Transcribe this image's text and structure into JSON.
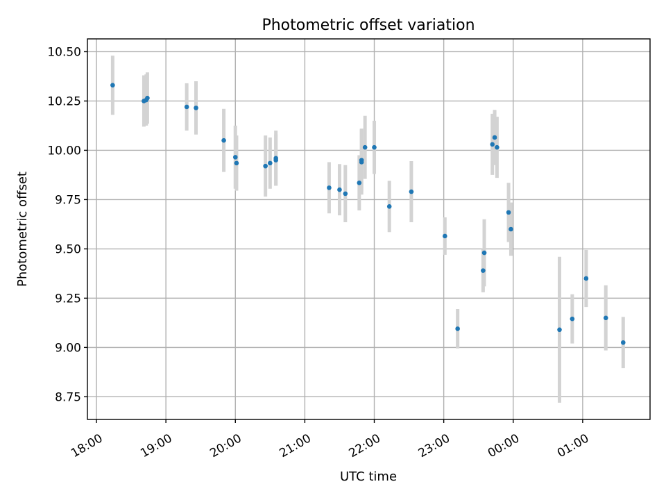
{
  "chart_data": {
    "type": "scatter",
    "title": "Photometric offset variation",
    "xlabel": "UTC time",
    "ylabel": "Photometric offset",
    "x_range_hours": [
      17.87,
      25.97
    ],
    "ylim": [
      8.635,
      10.565
    ],
    "grid": true,
    "x_ticks": [
      {
        "hour": 18,
        "label": "18:00"
      },
      {
        "hour": 19,
        "label": "19:00"
      },
      {
        "hour": 20,
        "label": "20:00"
      },
      {
        "hour": 21,
        "label": "21:00"
      },
      {
        "hour": 22,
        "label": "22:00"
      },
      {
        "hour": 23,
        "label": "23:00"
      },
      {
        "hour": 24,
        "label": "00:00"
      },
      {
        "hour": 25,
        "label": "01:00"
      }
    ],
    "y_ticks": [
      {
        "value": 8.75,
        "label": "8.75"
      },
      {
        "value": 9.0,
        "label": "9.00"
      },
      {
        "value": 9.25,
        "label": "9.25"
      },
      {
        "value": 9.5,
        "label": "9.50"
      },
      {
        "value": 9.75,
        "label": "9.75"
      },
      {
        "value": 10.0,
        "label": "10.00"
      },
      {
        "value": 10.25,
        "label": "10.25"
      },
      {
        "value": 10.5,
        "label": "10.50"
      }
    ],
    "series": [
      {
        "marker_color": "#1f77b4",
        "errorbar_color": "#d3d3d3",
        "points": [
          {
            "t": "18:14",
            "y": 10.33,
            "err": 0.15
          },
          {
            "t": "18:41",
            "y": 10.25,
            "err": 0.13
          },
          {
            "t": "18:43",
            "y": 10.255,
            "err": 0.13
          },
          {
            "t": "18:44",
            "y": 10.265,
            "err": 0.13
          },
          {
            "t": "19:18",
            "y": 10.22,
            "err": 0.12
          },
          {
            "t": "19:26",
            "y": 10.215,
            "err": 0.135
          },
          {
            "t": "19:50",
            "y": 10.05,
            "err": 0.16
          },
          {
            "t": "20:00",
            "y": 9.965,
            "err": 0.16
          },
          {
            "t": "20:01",
            "y": 9.935,
            "err": 0.14
          },
          {
            "t": "20:26",
            "y": 9.92,
            "err": 0.155
          },
          {
            "t": "20:30",
            "y": 9.935,
            "err": 0.13
          },
          {
            "t": "20:35",
            "y": 9.95,
            "err": 0.13
          },
          {
            "t": "20:35",
            "y": 9.96,
            "err": 0.14
          },
          {
            "t": "21:21",
            "y": 9.81,
            "err": 0.13
          },
          {
            "t": "21:30",
            "y": 9.8,
            "err": 0.13
          },
          {
            "t": "21:35",
            "y": 9.78,
            "err": 0.145
          },
          {
            "t": "21:47",
            "y": 9.835,
            "err": 0.14
          },
          {
            "t": "21:49",
            "y": 9.94,
            "err": 0.165
          },
          {
            "t": "21:49",
            "y": 9.95,
            "err": 0.16
          },
          {
            "t": "21:52",
            "y": 10.015,
            "err": 0.16
          },
          {
            "t": "22:00",
            "y": 10.015,
            "err": 0.135
          },
          {
            "t": "22:13",
            "y": 9.715,
            "err": 0.13
          },
          {
            "t": "22:32",
            "y": 9.79,
            "err": 0.155
          },
          {
            "t": "23:01",
            "y": 9.565,
            "err": 0.095
          },
          {
            "t": "23:12",
            "y": 9.095,
            "err": 0.1
          },
          {
            "t": "23:34",
            "y": 9.39,
            "err": 0.11
          },
          {
            "t": "23:35",
            "y": 9.48,
            "err": 0.17
          },
          {
            "t": "23:42",
            "y": 10.03,
            "err": 0.155
          },
          {
            "t": "23:44",
            "y": 10.065,
            "err": 0.14
          },
          {
            "t": "23:46",
            "y": 10.015,
            "err": 0.155
          },
          {
            "t": "23:56",
            "y": 9.685,
            "err": 0.15
          },
          {
            "t": "23:58",
            "y": 9.6,
            "err": 0.135
          },
          {
            "t": "00:40",
            "y": 9.09,
            "err": 0.37
          },
          {
            "t": "00:51",
            "y": 9.145,
            "err": 0.125
          },
          {
            "t": "01:03",
            "y": 9.35,
            "err": 0.145
          },
          {
            "t": "01:20",
            "y": 9.15,
            "err": 0.165
          },
          {
            "t": "01:35",
            "y": 9.025,
            "err": 0.13
          }
        ]
      }
    ]
  }
}
